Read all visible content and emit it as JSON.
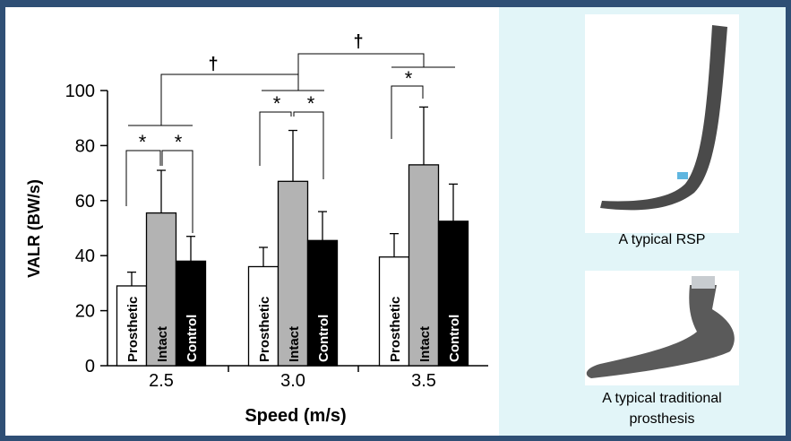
{
  "chart_data": {
    "type": "bar",
    "x_label": "Speed (m/s)",
    "y_label": "VALR (BW/s)",
    "categories": [
      "2.5",
      "3.0",
      "3.5"
    ],
    "series": [
      {
        "name": "Prosthetic",
        "color": "#ffffff",
        "values": [
          29,
          36,
          39.5
        ],
        "errors": [
          5,
          7,
          8.5
        ]
      },
      {
        "name": "Intact",
        "color": "#b3b3b3",
        "values": [
          55.5,
          67,
          73
        ],
        "errors": [
          15.5,
          18.5,
          21
        ]
      },
      {
        "name": "Control",
        "color": "#000000",
        "values": [
          38,
          45.5,
          52.5
        ],
        "errors": [
          9,
          10.5,
          13.5
        ]
      }
    ],
    "ylim": [
      0,
      100
    ],
    "yticks": [
      0,
      20,
      40,
      60,
      80,
      100
    ],
    "annotations": [
      "*",
      "*",
      "*",
      "*",
      "*",
      "†",
      "†"
    ]
  },
  "panel": {
    "captions": [
      "A typical RSP",
      "A typical traditional prosthesis"
    ]
  }
}
